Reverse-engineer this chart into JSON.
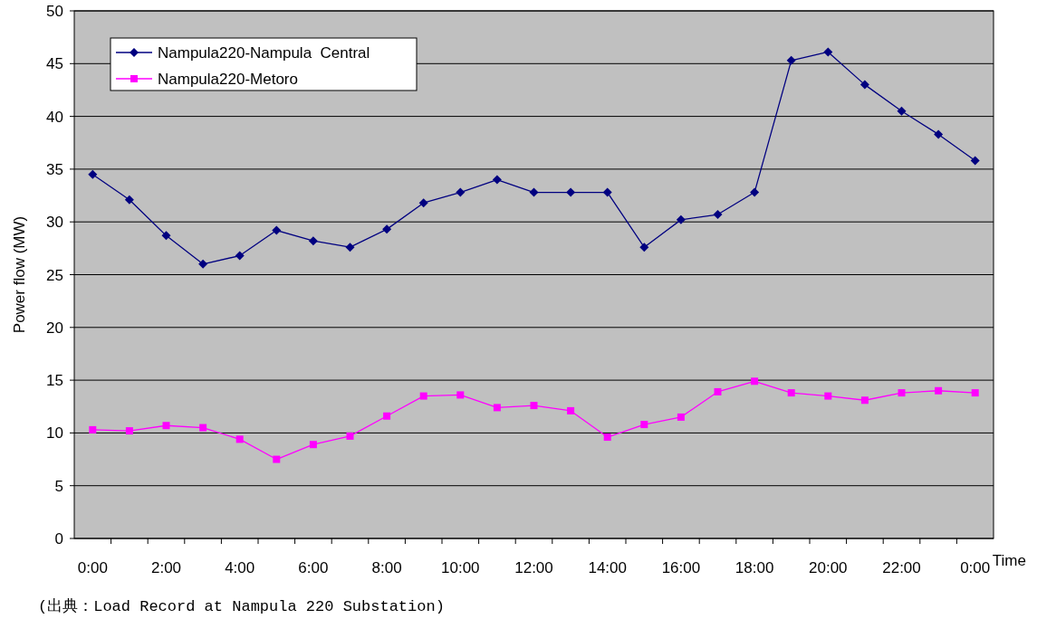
{
  "chart_data": {
    "type": "line",
    "xlabel": "Time",
    "ylabel": "Power flow (MW)",
    "categories": [
      "0:00",
      null,
      "2:00",
      null,
      "4:00",
      null,
      "6:00",
      null,
      "8:00",
      null,
      "10:00",
      null,
      "12:00",
      null,
      "14:00",
      null,
      "16:00",
      null,
      "18:00",
      null,
      "20:00",
      null,
      "22:00",
      null,
      "0:00"
    ],
    "series": [
      {
        "name": "Nampula220-Nampula  Central",
        "color": "#000080",
        "marker": "diamond",
        "values": [
          34.5,
          32.1,
          28.7,
          26.0,
          26.8,
          29.2,
          28.2,
          27.6,
          29.3,
          31.8,
          32.8,
          34.0,
          32.8,
          32.8,
          32.8,
          27.6,
          30.2,
          30.7,
          32.8,
          45.3,
          46.1,
          43.0,
          40.5,
          38.3,
          35.8
        ]
      },
      {
        "name": "Nampula220-Metoro",
        "color": "#ff00ff",
        "marker": "square",
        "values": [
          10.3,
          10.2,
          10.7,
          10.5,
          9.4,
          7.5,
          8.9,
          9.7,
          11.6,
          13.5,
          13.6,
          12.4,
          12.6,
          12.1,
          9.6,
          10.8,
          11.5,
          13.9,
          14.9,
          13.8,
          13.5,
          13.1,
          13.8,
          14.0,
          13.8
        ]
      }
    ],
    "ylim": [
      0,
      50
    ],
    "yticks": [
      0,
      5,
      10,
      15,
      20,
      25,
      30,
      35,
      40,
      45,
      50
    ],
    "grid": "y",
    "legend": "top left",
    "line_style": "solid",
    "annotations": [
      "(出典：Load Record at Nampula 220 Substation)"
    ]
  }
}
